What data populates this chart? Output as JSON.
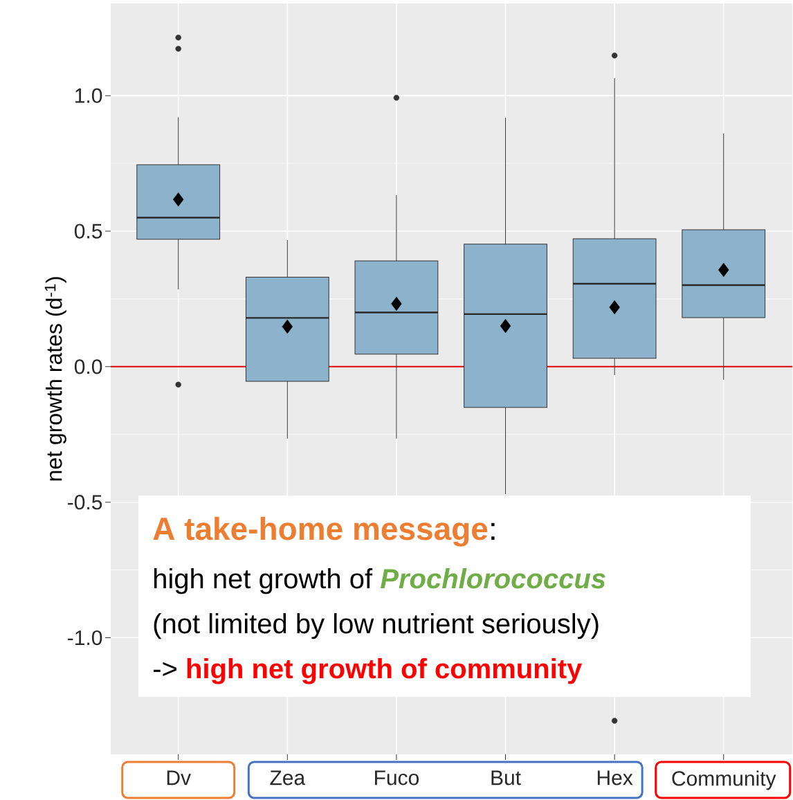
{
  "chart_data": {
    "type": "box",
    "ylabel": "net growth rates  (d$^{-1}$)",
    "categories": [
      "Dv",
      "Zea",
      "Fuco",
      "But",
      "Hex",
      "Community"
    ],
    "color": "#8db3cc",
    "boxes": [
      {
        "low": 0.285,
        "q1": 0.47,
        "median": 0.55,
        "q3": 0.745,
        "high": 0.92,
        "mean": 0.617,
        "outliers": [
          1.214,
          1.173,
          -0.066
        ]
      },
      {
        "low": -0.265,
        "q1": -0.054,
        "median": 0.18,
        "q3": 0.33,
        "high": 0.467,
        "mean": 0.148
      },
      {
        "low": -0.265,
        "q1": 0.046,
        "median": 0.2,
        "q3": 0.39,
        "high": 0.633,
        "mean": 0.232,
        "outliers": [
          0.992
        ]
      },
      {
        "low": -0.47,
        "q1": -0.15,
        "median": 0.194,
        "q3": 0.452,
        "high": 0.918,
        "mean": 0.15
      },
      {
        "low": -0.031,
        "q1": 0.031,
        "median": 0.306,
        "q3": 0.472,
        "high": 1.064,
        "mean": 0.219,
        "outliers": [
          1.148,
          -1.306
        ]
      },
      {
        "low": -0.048,
        "q1": 0.181,
        "median": 0.301,
        "q3": 0.505,
        "high": 0.86,
        "mean": 0.357
      }
    ],
    "ylim": [
      -1.43,
      1.34
    ],
    "yticks": [
      {
        "value": -1.0,
        "label": "-1.0"
      },
      {
        "value": -0.5,
        "label": "-0.5"
      },
      {
        "value": 0,
        "label": "0.0"
      },
      {
        "value": 0.5,
        "label": "0.5"
      },
      {
        "value": 1.0,
        "label": "1.0"
      }
    ],
    "grid": true,
    "ref_lines": [
      {
        "axis": "y",
        "value": 0,
        "color": "#e00000"
      }
    ],
    "annotations": [
      "A take-home message",
      ":",
      "high net growth of",
      "Prochlorococcus",
      "(not limited by low nutrient seriously)",
      "->",
      "high net growth of community"
    ]
  }
}
